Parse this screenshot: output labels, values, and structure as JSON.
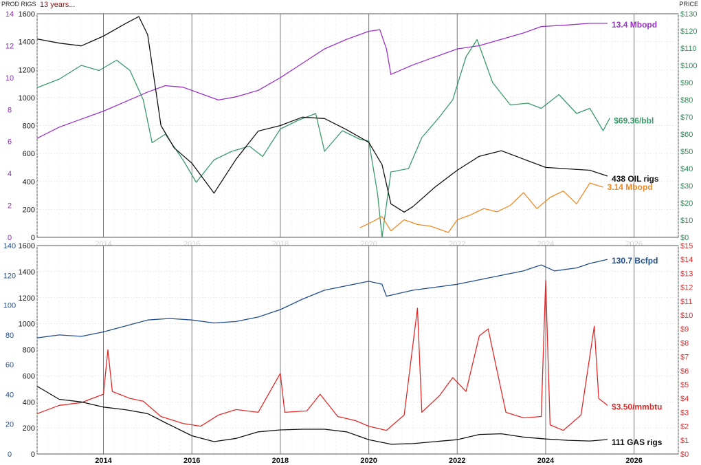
{
  "header": {
    "left_axis_title": "PROD RIGS",
    "note": "13 years...",
    "right_axis_title": "PRICE"
  },
  "colors": {
    "oil_prod": "#9b30c8",
    "oil_price": "#3a9a6a",
    "oil_rigs": "#111111",
    "ngl": "#f08a24",
    "gas_prod": "#1f4e8c",
    "gas_price": "#e22a2a",
    "gas_rigs": "#111111",
    "prod_axis_top": "#8a2bb0",
    "prod_axis_bottom": "#1f4e8c",
    "price_axis_top": "#2e8b57",
    "price_axis_bottom": "#e22a2a",
    "note": "#8b1a1a"
  },
  "chart_data": [
    {
      "type": "line",
      "panel": "oil",
      "xlim": [
        2012.5,
        2027.0
      ],
      "x_ticks": [
        "2014",
        "2016",
        "2018",
        "2020",
        "2022",
        "2024",
        "2026"
      ],
      "rig_axis": {
        "min": 0,
        "max": 1600,
        "ticks": [
          "0",
          "200",
          "400",
          "600",
          "800",
          "1000",
          "1200",
          "1400",
          "1600"
        ]
      },
      "prod_axis": {
        "min": 0,
        "max": 14,
        "ticks": [
          "0",
          "2",
          "4",
          "6",
          "8",
          "10",
          "12",
          "14"
        ]
      },
      "price_axis": {
        "min": 0,
        "max": 130,
        "ticks": [
          "$0",
          "$10",
          "$20",
          "$30",
          "$40",
          "$50",
          "$60",
          "$70",
          "$80",
          "$90",
          "$100",
          "$110",
          "$120",
          "$130"
        ]
      },
      "grid": true,
      "series": [
        {
          "key": "oil_prod",
          "axis": "prod",
          "label": "13.4 Mbopd",
          "points": [
            [
              2012.5,
              6.2
            ],
            [
              2013.0,
              6.9
            ],
            [
              2013.5,
              7.4
            ],
            [
              2014.0,
              7.9
            ],
            [
              2014.5,
              8.5
            ],
            [
              2015.0,
              9.1
            ],
            [
              2015.4,
              9.5
            ],
            [
              2015.8,
              9.4
            ],
            [
              2016.2,
              9.0
            ],
            [
              2016.6,
              8.6
            ],
            [
              2017.0,
              8.8
            ],
            [
              2017.5,
              9.2
            ],
            [
              2018.0,
              10.0
            ],
            [
              2018.5,
              10.9
            ],
            [
              2019.0,
              11.8
            ],
            [
              2019.5,
              12.4
            ],
            [
              2020.0,
              12.9
            ],
            [
              2020.25,
              13.0
            ],
            [
              2020.4,
              11.8
            ],
            [
              2020.5,
              10.2
            ],
            [
              2021.0,
              10.8
            ],
            [
              2021.5,
              11.3
            ],
            [
              2022.0,
              11.8
            ],
            [
              2022.5,
              12.0
            ],
            [
              2023.0,
              12.4
            ],
            [
              2023.5,
              12.8
            ],
            [
              2023.9,
              13.2
            ],
            [
              2024.5,
              13.3
            ],
            [
              2025.0,
              13.4
            ],
            [
              2025.4,
              13.4
            ]
          ]
        },
        {
          "key": "oil_price",
          "axis": "price",
          "label": "$69.36/bbl",
          "points": [
            [
              2012.5,
              87
            ],
            [
              2013.0,
              92
            ],
            [
              2013.5,
              100
            ],
            [
              2013.9,
              97
            ],
            [
              2014.3,
              103
            ],
            [
              2014.6,
              97
            ],
            [
              2014.9,
              80
            ],
            [
              2015.1,
              55
            ],
            [
              2015.4,
              60
            ],
            [
              2015.8,
              45
            ],
            [
              2016.1,
              32
            ],
            [
              2016.5,
              45
            ],
            [
              2016.9,
              50
            ],
            [
              2017.3,
              53
            ],
            [
              2017.6,
              47
            ],
            [
              2018.0,
              63
            ],
            [
              2018.4,
              68
            ],
            [
              2018.8,
              72
            ],
            [
              2019.0,
              50
            ],
            [
              2019.4,
              62
            ],
            [
              2019.8,
              57
            ],
            [
              2020.0,
              56
            ],
            [
              2020.2,
              25
            ],
            [
              2020.3,
              -5
            ],
            [
              2020.5,
              38
            ],
            [
              2020.9,
              40
            ],
            [
              2021.2,
              58
            ],
            [
              2021.6,
              70
            ],
            [
              2021.9,
              80
            ],
            [
              2022.2,
              105
            ],
            [
              2022.45,
              115
            ],
            [
              2022.8,
              90
            ],
            [
              2023.2,
              77
            ],
            [
              2023.6,
              78
            ],
            [
              2023.9,
              75
            ],
            [
              2024.3,
              83
            ],
            [
              2024.7,
              72
            ],
            [
              2025.0,
              75
            ],
            [
              2025.3,
              62
            ],
            [
              2025.45,
              69.36
            ]
          ]
        },
        {
          "key": "oil_rigs",
          "axis": "rigs",
          "label": "438 OIL rigs",
          "points": [
            [
              2012.5,
              1420
            ],
            [
              2013.0,
              1390
            ],
            [
              2013.5,
              1370
            ],
            [
              2014.0,
              1440
            ],
            [
              2014.5,
              1530
            ],
            [
              2014.8,
              1580
            ],
            [
              2015.0,
              1450
            ],
            [
              2015.3,
              800
            ],
            [
              2015.6,
              640
            ],
            [
              2016.0,
              530
            ],
            [
              2016.5,
              316
            ],
            [
              2017.0,
              560
            ],
            [
              2017.5,
              760
            ],
            [
              2018.0,
              800
            ],
            [
              2018.5,
              860
            ],
            [
              2019.0,
              850
            ],
            [
              2019.5,
              770
            ],
            [
              2020.0,
              680
            ],
            [
              2020.3,
              520
            ],
            [
              2020.5,
              240
            ],
            [
              2020.8,
              180
            ],
            [
              2021.0,
              220
            ],
            [
              2021.5,
              360
            ],
            [
              2022.0,
              480
            ],
            [
              2022.5,
              580
            ],
            [
              2023.0,
              620
            ],
            [
              2023.5,
              560
            ],
            [
              2024.0,
              500
            ],
            [
              2024.5,
              490
            ],
            [
              2025.0,
              480
            ],
            [
              2025.4,
              438
            ]
          ]
        },
        {
          "key": "ngl",
          "axis": "prod",
          "label": "3.14 Mbopd",
          "points": [
            [
              2019.8,
              0.6
            ],
            [
              2020.1,
              1.0
            ],
            [
              2020.3,
              1.3
            ],
            [
              2020.5,
              0.4
            ],
            [
              2020.8,
              1.1
            ],
            [
              2021.1,
              0.8
            ],
            [
              2021.4,
              0.7
            ],
            [
              2021.8,
              0.3
            ],
            [
              2022.0,
              1.1
            ],
            [
              2022.3,
              1.4
            ],
            [
              2022.6,
              1.8
            ],
            [
              2022.9,
              1.6
            ],
            [
              2023.2,
              2.0
            ],
            [
              2023.5,
              2.8
            ],
            [
              2023.8,
              1.8
            ],
            [
              2024.1,
              2.5
            ],
            [
              2024.4,
              2.9
            ],
            [
              2024.7,
              2.1
            ],
            [
              2025.0,
              3.4
            ],
            [
              2025.3,
              3.14
            ]
          ]
        }
      ]
    },
    {
      "type": "line",
      "panel": "gas",
      "xlim": [
        2012.5,
        2027.0
      ],
      "x_ticks": [
        "2014",
        "2016",
        "2018",
        "2020",
        "2022",
        "2024",
        "2026"
      ],
      "rig_axis": {
        "min": 0,
        "max": 1600,
        "ticks": [
          "0",
          "200",
          "400",
          "600",
          "800",
          "1000",
          "1200",
          "1400",
          "1600"
        ]
      },
      "prod_axis": {
        "min": 0,
        "max": 140,
        "ticks": [
          "0",
          "20",
          "40",
          "60",
          "80",
          "100",
          "120",
          "140"
        ]
      },
      "price_axis": {
        "min": 0,
        "max": 15,
        "ticks": [
          "$0",
          "$1",
          "$2",
          "$3",
          "$4",
          "$5",
          "$6",
          "$7",
          "$8",
          "$9",
          "$10",
          "$11",
          "$12",
          "$13",
          "$14",
          "$15"
        ]
      },
      "grid": true,
      "series": [
        {
          "key": "gas_prod",
          "axis": "prod",
          "label": "130.7 Bcfpd",
          "points": [
            [
              2012.5,
              78
            ],
            [
              2013.0,
              80
            ],
            [
              2013.5,
              79
            ],
            [
              2014.0,
              82
            ],
            [
              2014.5,
              86
            ],
            [
              2015.0,
              90
            ],
            [
              2015.5,
              91
            ],
            [
              2016.0,
              90
            ],
            [
              2016.5,
              88
            ],
            [
              2017.0,
              89
            ],
            [
              2017.5,
              92
            ],
            [
              2018.0,
              97
            ],
            [
              2018.5,
              104
            ],
            [
              2019.0,
              110
            ],
            [
              2019.5,
              113
            ],
            [
              2020.0,
              116
            ],
            [
              2020.3,
              114
            ],
            [
              2020.4,
              106
            ],
            [
              2021.0,
              110
            ],
            [
              2021.5,
              112
            ],
            [
              2022.0,
              114
            ],
            [
              2022.5,
              117
            ],
            [
              2023.0,
              120
            ],
            [
              2023.5,
              123
            ],
            [
              2023.9,
              127
            ],
            [
              2024.2,
              123
            ],
            [
              2024.7,
              125
            ],
            [
              2025.0,
              128
            ],
            [
              2025.4,
              130.7
            ]
          ]
        },
        {
          "key": "gas_price",
          "axis": "price",
          "label": "$3.50/mmbtu",
          "points": [
            [
              2012.5,
              2.9
            ],
            [
              2013.0,
              3.5
            ],
            [
              2013.5,
              3.7
            ],
            [
              2014.0,
              4.3
            ],
            [
              2014.1,
              7.5
            ],
            [
              2014.2,
              4.5
            ],
            [
              2014.6,
              4.0
            ],
            [
              2014.9,
              3.8
            ],
            [
              2015.3,
              2.7
            ],
            [
              2015.8,
              2.2
            ],
            [
              2016.2,
              2.0
            ],
            [
              2016.6,
              2.8
            ],
            [
              2017.0,
              3.2
            ],
            [
              2017.5,
              3.0
            ],
            [
              2018.0,
              5.8
            ],
            [
              2018.1,
              3.0
            ],
            [
              2018.6,
              3.1
            ],
            [
              2018.9,
              4.3
            ],
            [
              2019.3,
              2.7
            ],
            [
              2019.7,
              2.4
            ],
            [
              2020.0,
              2.0
            ],
            [
              2020.4,
              1.7
            ],
            [
              2020.8,
              2.8
            ],
            [
              2021.1,
              10.5
            ],
            [
              2021.2,
              3.0
            ],
            [
              2021.6,
              4.2
            ],
            [
              2021.9,
              5.5
            ],
            [
              2022.2,
              4.5
            ],
            [
              2022.5,
              8.5
            ],
            [
              2022.7,
              9.0
            ],
            [
              2022.9,
              6.0
            ],
            [
              2023.1,
              3.0
            ],
            [
              2023.5,
              2.6
            ],
            [
              2023.9,
              2.7
            ],
            [
              2024.0,
              12.5
            ],
            [
              2024.1,
              2.1
            ],
            [
              2024.4,
              1.7
            ],
            [
              2024.8,
              2.8
            ],
            [
              2025.1,
              9.2
            ],
            [
              2025.2,
              4.0
            ],
            [
              2025.4,
              3.5
            ]
          ]
        },
        {
          "key": "gas_rigs",
          "axis": "rigs",
          "label": "111 GAS rigs",
          "points": [
            [
              2012.5,
              520
            ],
            [
              2013.0,
              420
            ],
            [
              2013.5,
              400
            ],
            [
              2014.0,
              360
            ],
            [
              2014.5,
              340
            ],
            [
              2015.0,
              310
            ],
            [
              2015.4,
              240
            ],
            [
              2016.0,
              140
            ],
            [
              2016.5,
              95
            ],
            [
              2017.0,
              120
            ],
            [
              2017.5,
              170
            ],
            [
              2018.0,
              185
            ],
            [
              2018.5,
              190
            ],
            [
              2019.0,
              190
            ],
            [
              2019.5,
              170
            ],
            [
              2020.0,
              110
            ],
            [
              2020.5,
              75
            ],
            [
              2021.0,
              80
            ],
            [
              2021.5,
              95
            ],
            [
              2022.0,
              110
            ],
            [
              2022.5,
              150
            ],
            [
              2023.0,
              155
            ],
            [
              2023.5,
              130
            ],
            [
              2024.0,
              115
            ],
            [
              2024.5,
              105
            ],
            [
              2025.0,
              100
            ],
            [
              2025.4,
              111
            ]
          ]
        }
      ]
    }
  ]
}
